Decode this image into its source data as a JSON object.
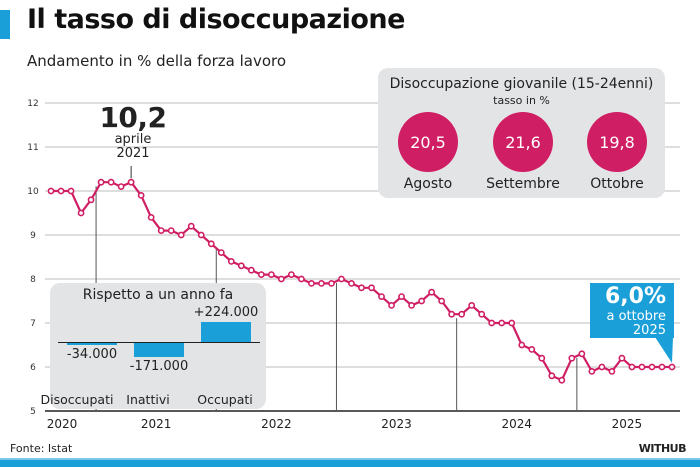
{
  "header": {
    "title": "Il tasso di disoccupazione",
    "subtitle": "Andamento in % della forza lavoro"
  },
  "colors": {
    "accent_blue": "#1a9fd8",
    "line_magenta": "#d01e64",
    "panel_grey": "#e3e4e6"
  },
  "chart_data": {
    "type": "line",
    "title": "Il tasso di disoccupazione",
    "subtitle": "Andamento in % della forza lavoro",
    "ylim": [
      5,
      12
    ],
    "yticks": [
      "5",
      "6",
      "7",
      "8",
      "9",
      "10",
      "11",
      "12"
    ],
    "xtick_labels": [
      "2020",
      "2021",
      "2022",
      "2023",
      "2024",
      "2025"
    ],
    "grid": true,
    "x": [
      "2020-08",
      "2020-09",
      "2020-10",
      "2020-11",
      "2020-12",
      "2021-01",
      "2021-02",
      "2021-03",
      "2021-04",
      "2021-05",
      "2021-06",
      "2021-07",
      "2021-08",
      "2021-09",
      "2021-10",
      "2021-11",
      "2021-12",
      "2022-01",
      "2022-02",
      "2022-03",
      "2022-04",
      "2022-05",
      "2022-06",
      "2022-07",
      "2022-08",
      "2022-09",
      "2022-10",
      "2022-11",
      "2022-12",
      "2023-01",
      "2023-02",
      "2023-03",
      "2023-04",
      "2023-05",
      "2023-06",
      "2023-07",
      "2023-08",
      "2023-09",
      "2023-10",
      "2023-11",
      "2023-12",
      "2024-01",
      "2024-02",
      "2024-03",
      "2024-04",
      "2024-05",
      "2024-06",
      "2024-07",
      "2024-08",
      "2024-09",
      "2024-10",
      "2024-11",
      "2024-12",
      "2025-01",
      "2025-02",
      "2025-03",
      "2025-04",
      "2025-05",
      "2025-06",
      "2025-07",
      "2025-08",
      "2025-09",
      "2025-10"
    ],
    "values": [
      10.0,
      10.0,
      10.0,
      9.5,
      9.8,
      10.2,
      10.2,
      10.1,
      10.2,
      9.9,
      9.4,
      9.1,
      9.1,
      9.0,
      9.2,
      9.0,
      8.8,
      8.6,
      8.4,
      8.3,
      8.2,
      8.1,
      8.1,
      8.0,
      8.1,
      8.0,
      7.9,
      7.9,
      7.9,
      8.0,
      7.9,
      7.8,
      7.8,
      7.6,
      7.4,
      7.6,
      7.4,
      7.5,
      7.7,
      7.5,
      7.2,
      7.2,
      7.4,
      7.2,
      7.0,
      7.0,
      7.0,
      6.5,
      6.4,
      6.2,
      5.8,
      5.7,
      6.2,
      6.3,
      5.9,
      6.0,
      5.9,
      6.2,
      6.0,
      6.0,
      6.0,
      6.0,
      6.0
    ],
    "annotations": {
      "peak": {
        "value": "10,2",
        "month": "aprile",
        "year": "2021"
      },
      "latest": {
        "value": "6,0%",
        "line1": "a ottobre",
        "line2": "2025"
      }
    }
  },
  "youth_panel": {
    "title": "Disoccupazione giovanile (15-24enni)",
    "subtitle": "tasso in %",
    "items": [
      {
        "label": "Agosto",
        "value": "20,5"
      },
      {
        "label": "Settembre",
        "value": "21,6"
      },
      {
        "label": "Ottobre",
        "value": "19,8"
      }
    ]
  },
  "yoy_panel": {
    "title": "Rispetto a un anno fa",
    "type": "bar",
    "items": [
      {
        "label": "Disoccupati",
        "value": -34000,
        "text": "-34.000"
      },
      {
        "label": "Inattivi",
        "value": -171000,
        "text": "-171.000"
      },
      {
        "label": "Occupati",
        "value": 224000,
        "text": "+224.000"
      }
    ]
  },
  "footer": {
    "source": "Fonte: Istat",
    "brand": "WITHUB"
  }
}
